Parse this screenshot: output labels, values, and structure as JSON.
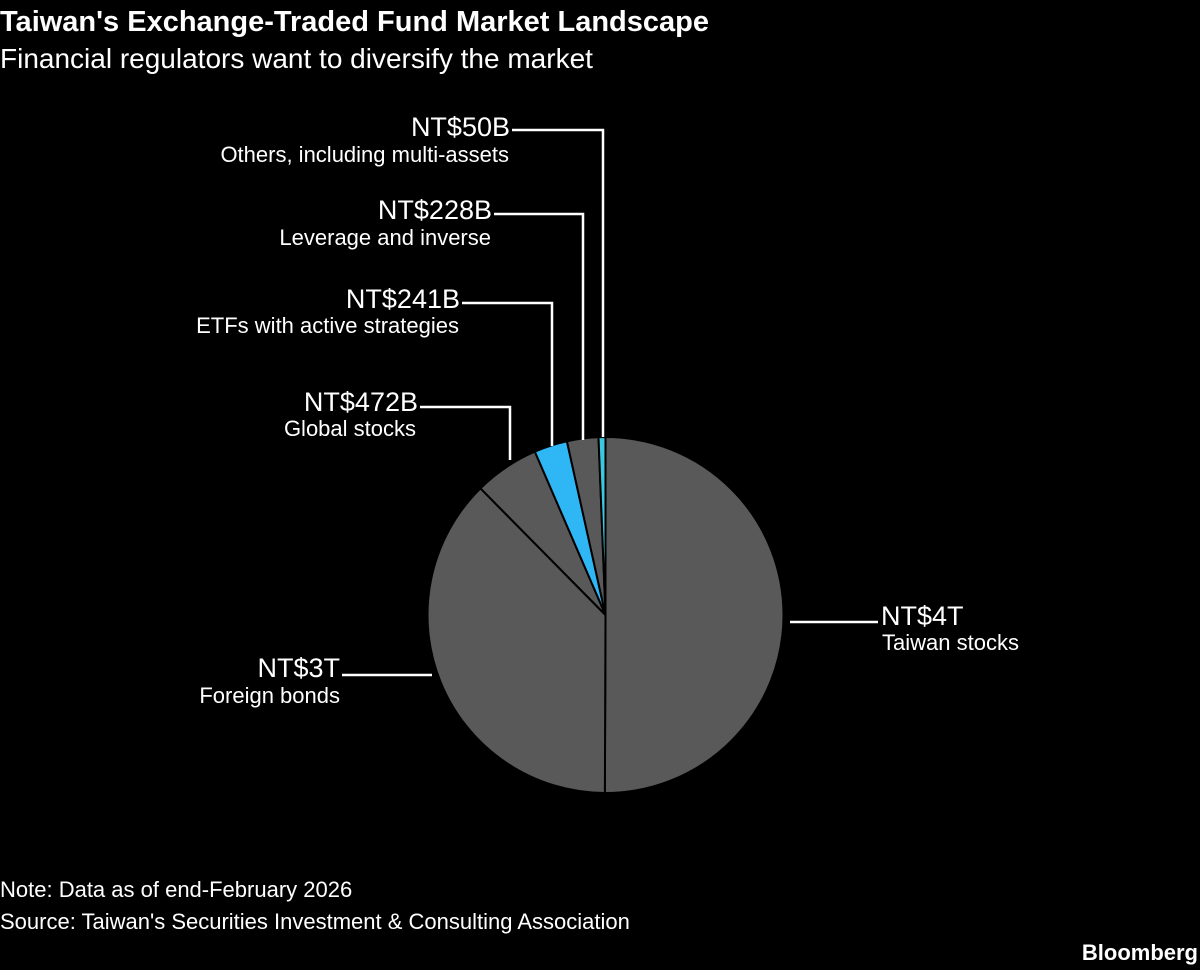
{
  "title": "Taiwan's Exchange-Traded Fund Market Landscape",
  "subtitle": "Financial regulators want to diversify the market",
  "note": "Note: Data as of end-February 2026",
  "source": "Source: Taiwan's Securities Investment & Consulting Association",
  "brand": "Bloomberg",
  "chart_data": {
    "type": "pie",
    "start": "top",
    "direction": "clockwise",
    "unit": "NT$ billions",
    "slices": [
      {
        "category": "Taiwan stocks",
        "label": "NT$4T",
        "value": 4000,
        "color": "#595959"
      },
      {
        "category": "Foreign bonds",
        "label": "NT$3T",
        "value": 3000,
        "color": "#595959"
      },
      {
        "category": "Global stocks",
        "label": "NT$472B",
        "value": 472,
        "color": "#595959"
      },
      {
        "category": "ETFs with active strategies",
        "label": "NT$241B",
        "value": 241,
        "color": "#2eb6f5"
      },
      {
        "category": "Leverage and inverse",
        "label": "NT$228B",
        "value": 228,
        "color": "#595959"
      },
      {
        "category": "Others, including multi-assets",
        "label": "NT$50B",
        "value": 50,
        "color": "#3cc8e0"
      }
    ]
  }
}
